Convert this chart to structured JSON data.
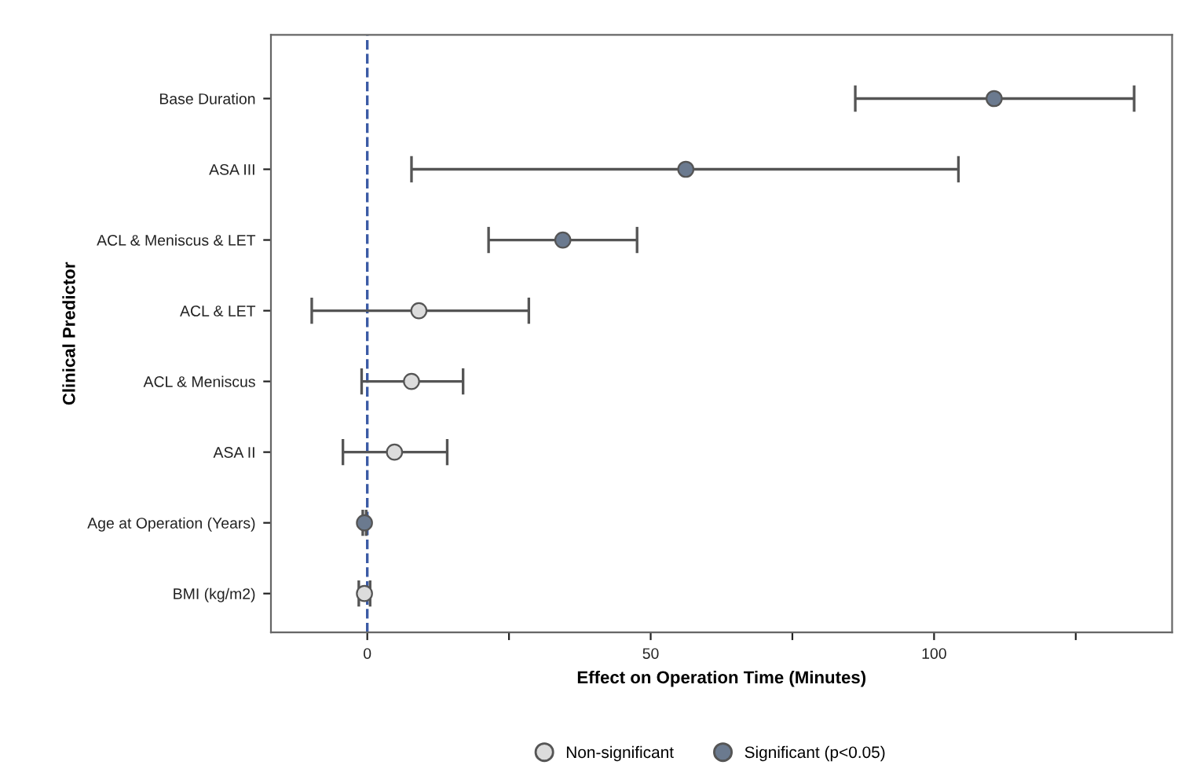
{
  "chart_data": {
    "type": "scatter",
    "orientation": "horizontal",
    "xlabel": "Effect on Operation Time (Minutes)",
    "ylabel": "Clinical Predictor",
    "categories": [
      "Base Duration",
      "ASA III",
      "ACL & Meniscus & LET",
      "ACL & LET",
      "ACL & Meniscus",
      "ASA II",
      "Age at Operation (Years)",
      "BMI (kg/m2)"
    ],
    "series": [
      {
        "name": "Non-significant",
        "color": "#dcdcdc",
        "values": [
          null,
          null,
          null,
          9.1,
          7.8,
          4.8,
          null,
          -0.5
        ],
        "errors": [
          null,
          null,
          null,
          [
            -9.8,
            28.5
          ],
          [
            -1.0,
            16.9
          ],
          [
            -4.3,
            14.1
          ],
          null,
          [
            -1.5,
            0.5
          ]
        ]
      },
      {
        "name": "Significant (p<0.05)",
        "color": "#6b7a8f",
        "values": [
          110.6,
          56.2,
          34.5,
          null,
          null,
          null,
          -0.5,
          null
        ],
        "errors": [
          [
            86.1,
            135.3
          ],
          [
            7.8,
            104.3
          ],
          [
            21.4,
            47.6
          ],
          null,
          null,
          null,
          [
            -0.8,
            -0.2
          ],
          null
        ]
      }
    ],
    "xlim": [
      -17,
      142
    ],
    "xticks": [
      0,
      {
        "value": 25,
        "label": null
      },
      50,
      {
        "value": 75,
        "label": null
      },
      100,
      {
        "value": 125,
        "label": null
      }
    ],
    "ref_lines": [
      {
        "axis": "x",
        "value": 0,
        "color": "#3b5ba5",
        "line_style": "dashed"
      }
    ],
    "marker": "circle",
    "grid": false,
    "legend": "bottom"
  }
}
